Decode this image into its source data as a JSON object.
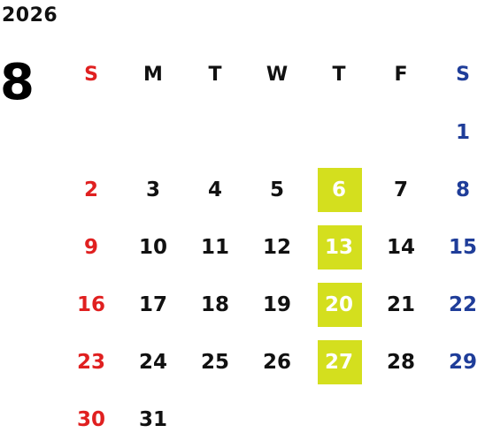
{
  "calendar": {
    "year": "2026",
    "month": "8",
    "weekdays": [
      "S",
      "M",
      "T",
      "W",
      "T",
      "F",
      "S"
    ],
    "weeks": [
      [
        "",
        "",
        "",
        "",
        "",
        "",
        "1"
      ],
      [
        "2",
        "3",
        "4",
        "5",
        "6",
        "7",
        "8"
      ],
      [
        "9",
        "10",
        "11",
        "12",
        "13",
        "14",
        "15"
      ],
      [
        "16",
        "17",
        "18",
        "19",
        "20",
        "21",
        "22"
      ],
      [
        "23",
        "24",
        "25",
        "26",
        "27",
        "28",
        "29"
      ],
      [
        "30",
        "31",
        "",
        "",
        "",
        "",
        ""
      ]
    ],
    "highlight_weekday": "T",
    "highlight_days": [
      "6",
      "13",
      "20",
      "27"
    ]
  },
  "colors": {
    "sunday": "#e02020",
    "saturday": "#1f3d99",
    "weekday": "#111111",
    "highlight": "#d4df1e"
  }
}
